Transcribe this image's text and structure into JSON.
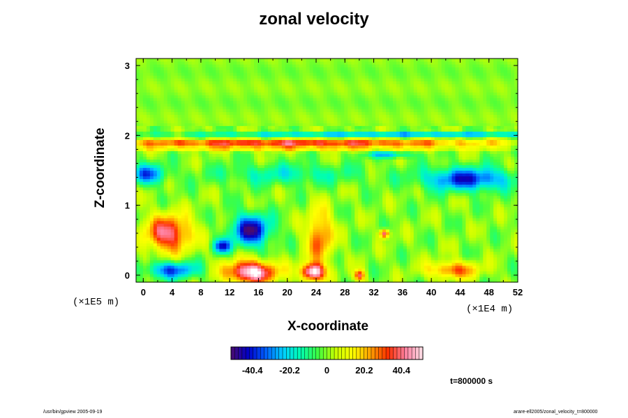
{
  "chart_data": {
    "type": "heatmap",
    "title": "zonal velocity",
    "xlabel": "X-coordinate",
    "ylabel": "Z-coordinate",
    "x_unit": "(×1E4 m)",
    "y_unit": "(×1E5 m)",
    "xlim": [
      -1,
      52
    ],
    "ylim": [
      -0.1,
      3.1
    ],
    "x_ticks": [
      "0",
      "4",
      "8",
      "12",
      "16",
      "20",
      "24",
      "28",
      "32",
      "36",
      "40",
      "44",
      "48",
      "52"
    ],
    "y_ticks": [
      "0",
      "1",
      "2",
      "3"
    ],
    "colorbar": {
      "ticks": [
        "-40.4",
        "-20.2",
        "0",
        "20.2",
        "40.4"
      ],
      "tick_values": [
        -40.4,
        -20.2,
        0,
        20.2,
        40.4
      ],
      "range": [
        -52,
        52
      ],
      "colors": [
        "#4a0b6e",
        "#0000c8",
        "#0060ff",
        "#00d0ff",
        "#00ffb0",
        "#40ff40",
        "#c8ff00",
        "#ffff00",
        "#ffa000",
        "#ff3000",
        "#ff80a0",
        "#ffe0e8"
      ]
    },
    "features": [
      {
        "x": 15,
        "z": 0.05,
        "value": 55,
        "rx": 3.5,
        "rz": 0.16
      },
      {
        "x": 23.5,
        "z": 0.05,
        "value": 55,
        "rx": 1.6,
        "rz": 0.12
      },
      {
        "x": 15,
        "z": 0.65,
        "value": -48,
        "rx": 2.6,
        "rz": 0.22
      },
      {
        "x": 11,
        "z": 0.42,
        "value": -38,
        "rx": 1.2,
        "rz": 0.1
      },
      {
        "x": 3.5,
        "z": 0.6,
        "value": 42,
        "rx": 3.2,
        "rz": 0.26
      },
      {
        "x": 24.5,
        "z": 0.55,
        "value": 30,
        "rx": 1.8,
        "rz": 0.4
      },
      {
        "x": 33.5,
        "z": 0.6,
        "value": 45,
        "rx": 0.6,
        "rz": 0.06
      },
      {
        "x": 4,
        "z": 0.08,
        "value": -35,
        "rx": 3.5,
        "rz": 0.12
      },
      {
        "x": 43,
        "z": 0.08,
        "value": 30,
        "rx": 3.5,
        "rz": 0.12
      },
      {
        "x": 30,
        "z": 0.0,
        "value": 38,
        "rx": 0.7,
        "rz": 0.08
      },
      {
        "x": 0.5,
        "z": 1.45,
        "value": -32,
        "rx": 2.5,
        "rz": 0.14
      },
      {
        "x": 45,
        "z": 1.38,
        "value": -40,
        "rx": 6.0,
        "rz": 0.16
      },
      {
        "x": 20,
        "z": 1.45,
        "value": -15,
        "rx": 10.0,
        "rz": 0.15
      },
      {
        "x": 34,
        "z": 1.73,
        "value": -25,
        "rx": 3.0,
        "rz": 0.05
      },
      {
        "x": 20,
        "z": 1.9,
        "value": 40,
        "rx": 30.0,
        "rz": 0.045
      },
      {
        "x": 36,
        "z": 2.02,
        "value": -38,
        "rx": 30.0,
        "rz": 0.025
      },
      {
        "x": 20,
        "z": 1.82,
        "value": 20,
        "rx": 30.0,
        "rz": 0.04
      }
    ],
    "time": "t=800000 s"
  },
  "footer": {
    "left": "/usr/bin/gpview 2005-09-19",
    "right": "arare-ell2005/zonal_velocity_t=800000"
  }
}
